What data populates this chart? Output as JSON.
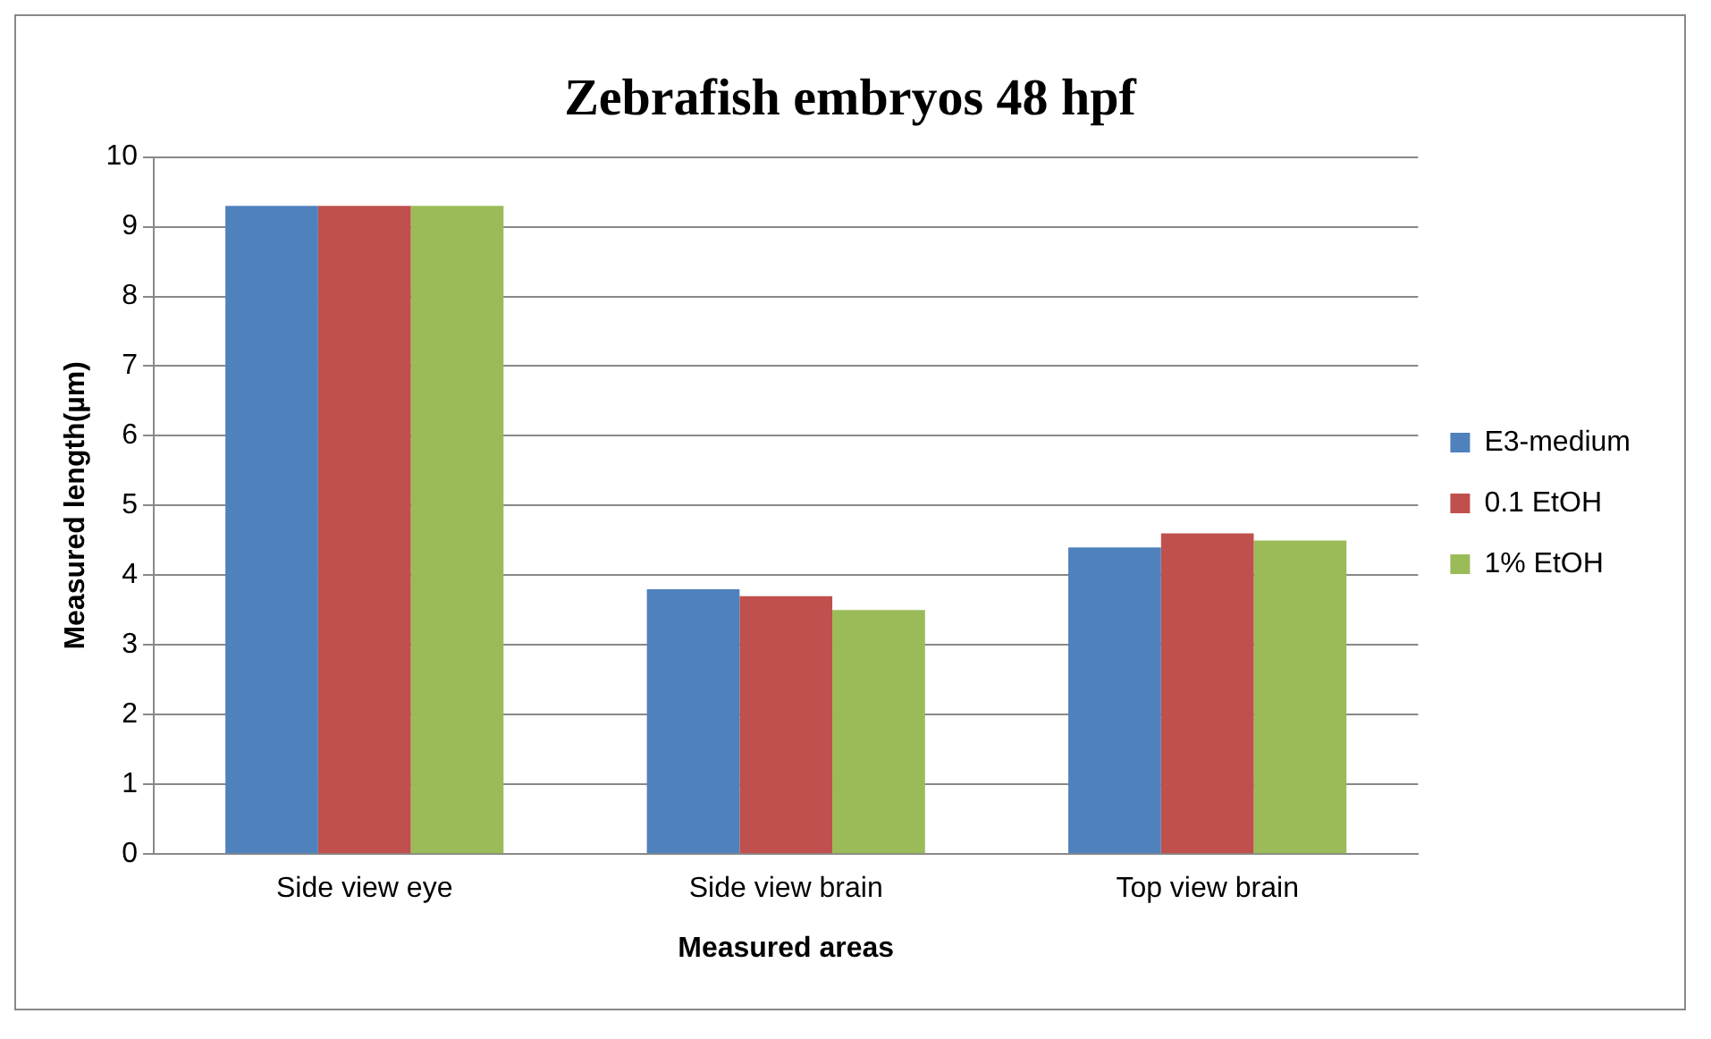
{
  "chart_data": {
    "type": "bar",
    "title": "Zebrafish embryos 48 hpf",
    "xlabel": "Measured areas",
    "ylabel": "Measured length(µm)",
    "categories": [
      "Side view eye",
      "Side view brain",
      "Top view brain"
    ],
    "series": [
      {
        "name": "E3-medium",
        "color": "#4f81bd",
        "values": [
          9.3,
          3.8,
          4.4
        ]
      },
      {
        "name": "0.1 EtOH",
        "color": "#c0504d",
        "values": [
          9.3,
          3.7,
          4.6
        ]
      },
      {
        "name": "1% EtOH",
        "color": "#9bbb59",
        "values": [
          9.3,
          3.5,
          4.5
        ]
      }
    ],
    "ylim": [
      0,
      10
    ],
    "yticks": [
      0,
      1,
      2,
      3,
      4,
      5,
      6,
      7,
      8,
      9,
      10
    ],
    "grid": "y",
    "legend": "right"
  }
}
